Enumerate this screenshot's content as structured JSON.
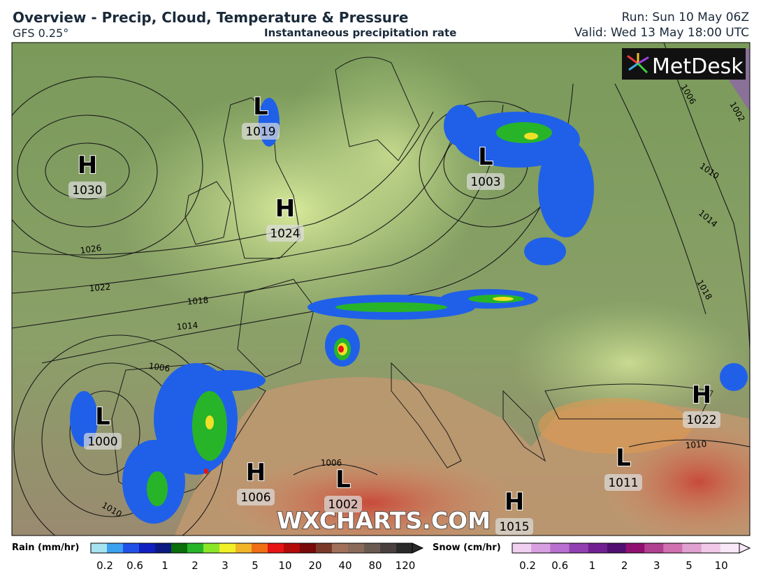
{
  "header": {
    "title": "Overview - Precip, Cloud, Temperature & Pressure",
    "model": "GFS 0.25°",
    "subtitle": "Instantaneous precipitation rate",
    "run": "Run: Sun 10 May 06Z",
    "valid": "Valid: Wed 13 May 18:00 UTC"
  },
  "logo": "MetDesk",
  "watermark": "WXCHARTS.COM",
  "pressure_centers": [
    {
      "type": "H",
      "value": "1030"
    },
    {
      "type": "L",
      "value": "1019"
    },
    {
      "type": "H",
      "value": "1024"
    },
    {
      "type": "L",
      "value": "1003"
    },
    {
      "type": "L",
      "value": "1000"
    },
    {
      "type": "H",
      "value": "1006"
    },
    {
      "type": "L",
      "value": "1002"
    },
    {
      "type": "H",
      "value": "1015"
    },
    {
      "type": "L",
      "value": "1011"
    },
    {
      "type": "H",
      "value": "1022"
    }
  ],
  "isobar_labels": [
    "1026",
    "1022",
    "1018",
    "1014",
    "1006",
    "1010",
    "1006",
    "1010",
    "1010",
    "1014",
    "1018",
    "1006",
    "1002"
  ],
  "legend": {
    "rain": {
      "label": "Rain (mm/hr)",
      "ticks": [
        "0.2",
        "0.6",
        "1",
        "2",
        "3",
        "5",
        "10",
        "20",
        "40",
        "80",
        "120"
      ]
    },
    "snow": {
      "label": "Snow (cm/hr)",
      "ticks": [
        "0.2",
        "0.6",
        "1",
        "2",
        "3",
        "5",
        "10"
      ]
    }
  }
}
